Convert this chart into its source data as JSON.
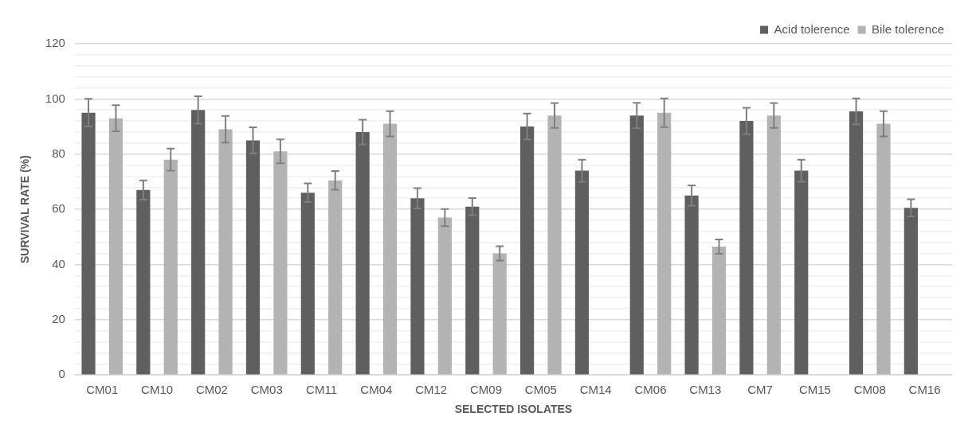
{
  "chart_data": {
    "type": "bar",
    "xlabel": "SELECTED ISOLATES",
    "ylabel": "SURVIVAL RATE (%)",
    "categories": [
      "CM01",
      "CM10",
      "CM02",
      "CM03",
      "CM11",
      "CM04",
      "CM12",
      "CM09",
      "CM05",
      "CM14",
      "CM06",
      "CM13",
      "CM7",
      "CM15",
      "CM08",
      "CM16"
    ],
    "series": [
      {
        "name": "Acid tolerence",
        "color": "#5f5f5f",
        "values": [
          95,
          67,
          96,
          85,
          66,
          88,
          64,
          61,
          90,
          74,
          94,
          65,
          92,
          74,
          95.5,
          60.5
        ],
        "errors": [
          5,
          3.5,
          5,
          4.7,
          3.4,
          4.5,
          3.7,
          3.1,
          4.7,
          4,
          4.6,
          3.7,
          4.8,
          4,
          4.7,
          3.1
        ]
      },
      {
        "name": "Bile tolerence",
        "color": "#b3b3b3",
        "values": [
          93,
          78,
          89,
          81,
          70.5,
          91,
          57,
          44,
          94,
          null,
          95,
          46.5,
          94,
          null,
          91,
          null
        ],
        "errors": [
          4.7,
          4,
          4.8,
          4.3,
          3.4,
          4.6,
          3.1,
          2.6,
          4.5,
          null,
          5.2,
          2.6,
          4.5,
          null,
          4.6,
          null
        ]
      }
    ],
    "ylim": [
      0,
      120
    ],
    "yticks": [
      0,
      {
        "value": 4,
        "label": null
      },
      {
        "value": 8,
        "label": null
      },
      {
        "value": 12,
        "label": null
      },
      {
        "value": 16,
        "label": null
      },
      20,
      {
        "value": 24,
        "label": null
      },
      {
        "value": 28,
        "label": null
      },
      {
        "value": 32,
        "label": null
      },
      {
        "value": 36,
        "label": null
      },
      40,
      {
        "value": 44,
        "label": null
      },
      {
        "value": 48,
        "label": null
      },
      {
        "value": 52,
        "label": null
      },
      {
        "value": 56,
        "label": null
      },
      60,
      {
        "value": 64,
        "label": null
      },
      {
        "value": 68,
        "label": null
      },
      {
        "value": 72,
        "label": null
      },
      {
        "value": 76,
        "label": null
      },
      80,
      {
        "value": 84,
        "label": null
      },
      {
        "value": 88,
        "label": null
      },
      {
        "value": 92,
        "label": null
      },
      {
        "value": 96,
        "label": null
      },
      100,
      {
        "value": 104,
        "label": null
      },
      {
        "value": 108,
        "label": null
      },
      {
        "value": 112,
        "label": null
      },
      {
        "value": 116,
        "label": null
      },
      120
    ],
    "grid": "y",
    "legend": "top right"
  }
}
